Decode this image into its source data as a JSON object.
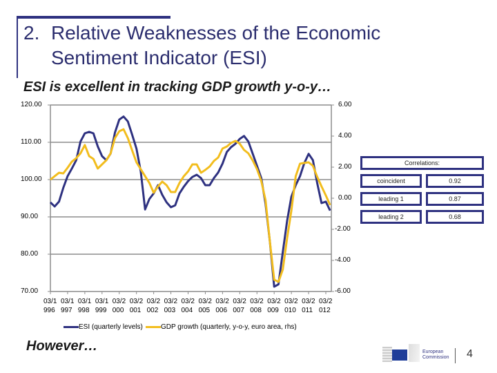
{
  "header": {
    "number": "2.",
    "title_line1": "Relative Weaknesses of the Economic",
    "title_line2": "Sentiment Indicator (ESI)"
  },
  "subtitle": "ESI is excellent in tracking GDP growth y-o-y…",
  "footer": {
    "however": "However…",
    "page_number": "4",
    "logo_text": "European Commission"
  },
  "correlations": {
    "title": "Correlations:",
    "rows": [
      {
        "label": "coincident",
        "value": "0.92"
      },
      {
        "label": "leading 1",
        "value": "0.87"
      },
      {
        "label": "leading 2",
        "value": "0.68"
      }
    ]
  },
  "chart_data": {
    "type": "line",
    "title": "",
    "x_tick_labels": [
      "03/1996",
      "03/1997",
      "03/1998",
      "03/1999",
      "03/2000",
      "03/2001",
      "03/2002",
      "03/2003",
      "03/2004",
      "03/2005",
      "03/2006",
      "03/2007",
      "03/2008",
      "03/2009",
      "03/2010",
      "03/2011",
      "03/2012"
    ],
    "y_left": {
      "range": [
        70,
        120
      ],
      "ticks": [
        "120.00",
        "110.00",
        "100.00",
        "90.00",
        "80.00",
        "70.00"
      ]
    },
    "y_right": {
      "range": [
        -6,
        6
      ],
      "ticks": [
        "6.00",
        "4.00",
        "2.00",
        "0.00",
        "-2.00",
        "-4.00",
        "-6.00"
      ]
    },
    "grid": "horizontal",
    "legend": "bottom",
    "x": [
      "1996-03",
      "1996-06",
      "1996-09",
      "1996-12",
      "1997-03",
      "1997-06",
      "1997-09",
      "1997-12",
      "1998-03",
      "1998-06",
      "1998-09",
      "1998-12",
      "1999-03",
      "1999-06",
      "1999-09",
      "1999-12",
      "2000-03",
      "2000-06",
      "2000-09",
      "2000-12",
      "2001-03",
      "2001-06",
      "2001-09",
      "2001-12",
      "2002-03",
      "2002-06",
      "2002-09",
      "2002-12",
      "2003-03",
      "2003-06",
      "2003-09",
      "2003-12",
      "2004-03",
      "2004-06",
      "2004-09",
      "2004-12",
      "2005-03",
      "2005-06",
      "2005-09",
      "2005-12",
      "2006-03",
      "2006-06",
      "2006-09",
      "2006-12",
      "2007-03",
      "2007-06",
      "2007-09",
      "2007-12",
      "2008-03",
      "2008-06",
      "2008-09",
      "2008-12",
      "2009-03",
      "2009-06",
      "2009-09",
      "2009-12",
      "2010-03",
      "2010-06",
      "2010-09",
      "2010-12",
      "2011-03",
      "2011-06",
      "2011-09",
      "2011-12",
      "2012-03",
      "2012-06"
    ],
    "series": [
      {
        "name": "ESI (quarterly levels)",
        "axis": "left",
        "color": "#2e3180",
        "values": [
          93.9,
          92.8,
          94.1,
          97.8,
          100.9,
          103.0,
          105.2,
          110.2,
          112.4,
          112.8,
          112.4,
          108.9,
          106.3,
          105.2,
          107.0,
          112.6,
          116.1,
          116.9,
          115.6,
          112.0,
          108.3,
          102.2,
          92.0,
          94.8,
          96.3,
          98.5,
          95.9,
          93.9,
          92.6,
          93.1,
          96.3,
          98.1,
          99.6,
          100.7,
          101.3,
          100.4,
          98.5,
          98.5,
          100.4,
          101.9,
          104.3,
          107.4,
          108.7,
          109.6,
          110.9,
          111.7,
          110.2,
          107.0,
          103.7,
          100.4,
          93.5,
          83.3,
          71.3,
          71.9,
          80.6,
          88.9,
          95.4,
          98.5,
          100.9,
          104.4,
          106.9,
          105.2,
          99.1,
          93.7,
          94.1,
          91.7
        ]
      },
      {
        "name": "GDP growth (quarterly, y-o-y, euro area, rhs)",
        "axis": "right",
        "color": "#f2bd1d",
        "values": [
          1.2,
          1.42,
          1.64,
          1.6,
          1.96,
          2.36,
          2.58,
          2.89,
          3.42,
          2.71,
          2.53,
          1.91,
          2.18,
          2.44,
          2.89,
          3.87,
          4.31,
          4.44,
          3.87,
          3.07,
          2.31,
          1.87,
          1.42,
          0.98,
          0.36,
          0.76,
          1.07,
          0.84,
          0.4,
          0.4,
          0.98,
          1.42,
          1.73,
          2.18,
          2.18,
          1.64,
          1.82,
          2.04,
          2.4,
          2.62,
          3.2,
          3.33,
          3.56,
          3.69,
          3.51,
          3.11,
          2.89,
          2.44,
          1.87,
          1.11,
          -0.13,
          -2.8,
          -5.24,
          -5.38,
          -4.58,
          -2.58,
          -0.8,
          1.42,
          2.22,
          2.27,
          2.31,
          2.09,
          1.38,
          0.76,
          0.18,
          -0.44
        ]
      }
    ]
  }
}
